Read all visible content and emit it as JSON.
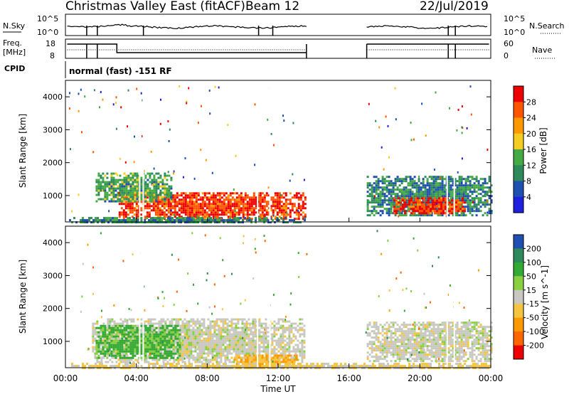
{
  "header": {
    "site_title": "Christmas Valley East (fitACF)",
    "beam": "Beam 12",
    "date": "22/Jul/2019"
  },
  "summary": {
    "nsky_label": "N.Sky",
    "nsky_ticks": [
      "10^5",
      "10^0"
    ],
    "nsearch_label": "N.Search",
    "nsearch_ticks": [
      "10^5",
      "10^0"
    ],
    "freq_label_line1": "Freq.",
    "freq_label_line2": "[MHz]",
    "freq_ticks": [
      "18",
      "8"
    ],
    "nave_label": "Nave",
    "nave_ticks": [
      "60",
      "0"
    ],
    "cpid_label": "CPID",
    "cpid_value": "normal (fast) -151 RF"
  },
  "colors": {
    "power": [
      "#1f1fe0",
      "#1f4fb0",
      "#2e8a5a",
      "#44aa44",
      "#f5cc22",
      "#ff9900",
      "#ff5500",
      "#ee0000"
    ],
    "velocity": [
      "#ee0000",
      "#ff6600",
      "#ff9900",
      "#f5c542",
      "#c8c8c0",
      "#88d040",
      "#33aa33",
      "#2e8a5a",
      "#1f4fb0"
    ],
    "summary_line": "#000000"
  },
  "chart_data": [
    {
      "type": "heatmap",
      "title": "",
      "ylabel": "Slant Range [km]",
      "xlabel": "",
      "ylim": [
        200,
        4500
      ],
      "xlim": [
        0,
        24
      ],
      "y_ticks": [
        "1000",
        "2000",
        "3000",
        "4000"
      ],
      "x_ticks": [],
      "colorbar_label": "Power [dB]",
      "colorbar_ticks": [
        "4",
        "8",
        "12",
        "16",
        "20",
        "24",
        "28"
      ],
      "colorbar_range": [
        0,
        32
      ],
      "features": [
        {
          "time": [
            3.0,
            13.5
          ],
          "range": [
            300,
            1100
          ],
          "value": 28
        },
        {
          "time": [
            1.7,
            6.0
          ],
          "range": [
            800,
            1700
          ],
          "value": 12
        },
        {
          "time": [
            17.0,
            24.0
          ],
          "range": [
            400,
            1600
          ],
          "value": 10
        },
        {
          "time": [
            18.5,
            22.5
          ],
          "range": [
            450,
            950
          ],
          "value": 28
        },
        {
          "time": [
            0.2,
            13.5
          ],
          "range": [
            200,
            350
          ],
          "value": 10
        }
      ]
    },
    {
      "type": "heatmap",
      "title": "",
      "ylabel": "Slant Range [km]",
      "xlabel": "Time UT",
      "ylim": [
        200,
        4500
      ],
      "xlim": [
        0,
        24
      ],
      "y_ticks": [
        "1000",
        "2000",
        "3000",
        "4000"
      ],
      "x_ticks": [
        "00:00",
        "04:00",
        "08:00",
        "12:00",
        "16:00",
        "20:00",
        "00:00"
      ],
      "colorbar_label": "Velocity [m s^-1]",
      "colorbar_ticks": [
        "-200",
        "-100",
        "-50",
        "-15",
        "15",
        "50",
        "100",
        "200"
      ],
      "features": [
        {
          "time": [
            1.5,
            13.5
          ],
          "range": [
            400,
            1700
          ],
          "value": 0
        },
        {
          "time": [
            1.7,
            6.5
          ],
          "range": [
            500,
            1500
          ],
          "value": 60
        },
        {
          "time": [
            9.5,
            13.0
          ],
          "range": [
            250,
            600
          ],
          "value": -50
        },
        {
          "time": [
            17.0,
            24.0
          ],
          "range": [
            400,
            1600
          ],
          "value": 0
        },
        {
          "time": [
            0.2,
            24.0
          ],
          "range": [
            200,
            350
          ],
          "value": -20
        }
      ]
    }
  ]
}
